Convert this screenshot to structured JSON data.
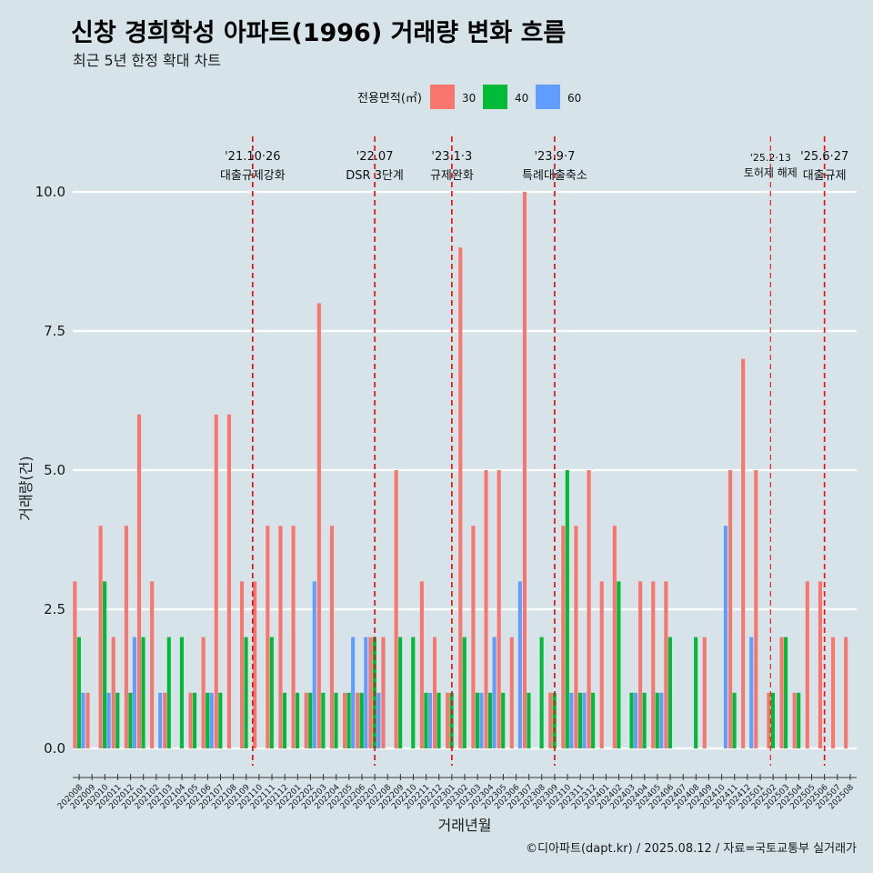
{
  "chart_data": {
    "type": "bar",
    "title": "신창 경희학성 아파트(1996) 거래량 변화 흐름",
    "subtitle": "최근 5년 한정 확대 차트",
    "xlabel": "거래년월",
    "ylabel": "거래량(건)",
    "caption": "©디아파트(dapt.kr) / 2025.08.12 / 자료=국토교통부 실거래가",
    "ylim": [
      0,
      10
    ],
    "yticks": [
      "0.0",
      "2.5",
      "5.0",
      "7.5",
      "10.0"
    ],
    "grid": true,
    "legend": {
      "title": "전용면적(㎡)",
      "position": "top",
      "entries": [
        {
          "label": "30",
          "color": "#f8766d"
        },
        {
          "label": "40",
          "color": "#00ba38"
        },
        {
          "label": "60",
          "color": "#619cff"
        }
      ]
    },
    "categories": [
      "202008",
      "202009",
      "202010",
      "202011",
      "202012",
      "202101",
      "202102",
      "202103",
      "202104",
      "202105",
      "202106",
      "202107",
      "202108",
      "202109",
      "202110",
      "202111",
      "202112",
      "202201",
      "202202",
      "202203",
      "202204",
      "202205",
      "202206",
      "202207",
      "202208",
      "202209",
      "202210",
      "202211",
      "202212",
      "202301",
      "202302",
      "202303",
      "202304",
      "202305",
      "202306",
      "202307",
      "202308",
      "202309",
      "202310",
      "202311",
      "202312",
      "202401",
      "202402",
      "202403",
      "202404",
      "202405",
      "202406",
      "202407",
      "202408",
      "202409",
      "202410",
      "202411",
      "202412",
      "202501",
      "202502",
      "202503",
      "202504",
      "202505",
      "202506",
      "202507",
      "202508"
    ],
    "series": [
      {
        "name": "30",
        "color": "#f8766d",
        "values": [
          3,
          1,
          4,
          2,
          4,
          6,
          3,
          1,
          0,
          1,
          2,
          6,
          6,
          3,
          3,
          4,
          4,
          4,
          1,
          8,
          4,
          1,
          1,
          2,
          2,
          5,
          0,
          3,
          2,
          1,
          9,
          4,
          5,
          5,
          2,
          10,
          0,
          1,
          4,
          4,
          5,
          3,
          4,
          0,
          3,
          3,
          3,
          0,
          0,
          2,
          0,
          5,
          7,
          5,
          1,
          2,
          1,
          3,
          3,
          2,
          2
        ]
      },
      {
        "name": "40",
        "color": "#00ba38",
        "values": [
          2,
          0,
          3,
          1,
          1,
          2,
          0,
          2,
          2,
          1,
          1,
          1,
          0,
          2,
          0,
          2,
          1,
          1,
          1,
          1,
          1,
          1,
          1,
          2,
          0,
          2,
          2,
          1,
          1,
          1,
          2,
          1,
          1,
          1,
          0,
          1,
          2,
          1,
          5,
          1,
          1,
          0,
          3,
          1,
          1,
          1,
          2,
          0,
          2,
          0,
          0,
          1,
          0,
          0,
          1,
          2,
          1,
          0,
          0,
          0,
          0
        ]
      },
      {
        "name": "60",
        "color": "#619cff",
        "values": [
          1,
          0,
          1,
          0,
          2,
          0,
          1,
          0,
          0,
          0,
          1,
          0,
          0,
          0,
          0,
          0,
          0,
          0,
          3,
          0,
          0,
          2,
          2,
          1,
          0,
          0,
          0,
          1,
          0,
          0,
          0,
          1,
          2,
          0,
          3,
          0,
          0,
          0,
          1,
          1,
          0,
          0,
          0,
          1,
          0,
          1,
          0,
          0,
          0,
          0,
          4,
          0,
          2,
          0,
          0,
          0,
          0,
          0,
          0,
          0,
          0
        ]
      }
    ],
    "annotations": [
      {
        "date_label": "'21.10·26",
        "text": "대출규제강화",
        "after_category": "202110",
        "offset": -0.5,
        "style": "bold"
      },
      {
        "date_label": "'22.07",
        "text": "DSR 3단계",
        "after_category": "202207",
        "offset": 0.0,
        "style": "bold"
      },
      {
        "date_label": "'23.1·3",
        "text": "규제완화",
        "after_category": "202301",
        "offset": 0.0,
        "style": "bold"
      },
      {
        "date_label": "'23.9·7",
        "text": "특례대출축소",
        "after_category": "202309",
        "offset": 0.0,
        "style": "bold"
      },
      {
        "date_label": "'25.2·13",
        "text": "토허제 해제",
        "after_category": "202502",
        "offset": -0.2,
        "style": "thin"
      },
      {
        "date_label": "'25.6·27",
        "text": "대출규제",
        "after_category": "202506",
        "offset": 0.0,
        "style": "bold"
      }
    ]
  }
}
